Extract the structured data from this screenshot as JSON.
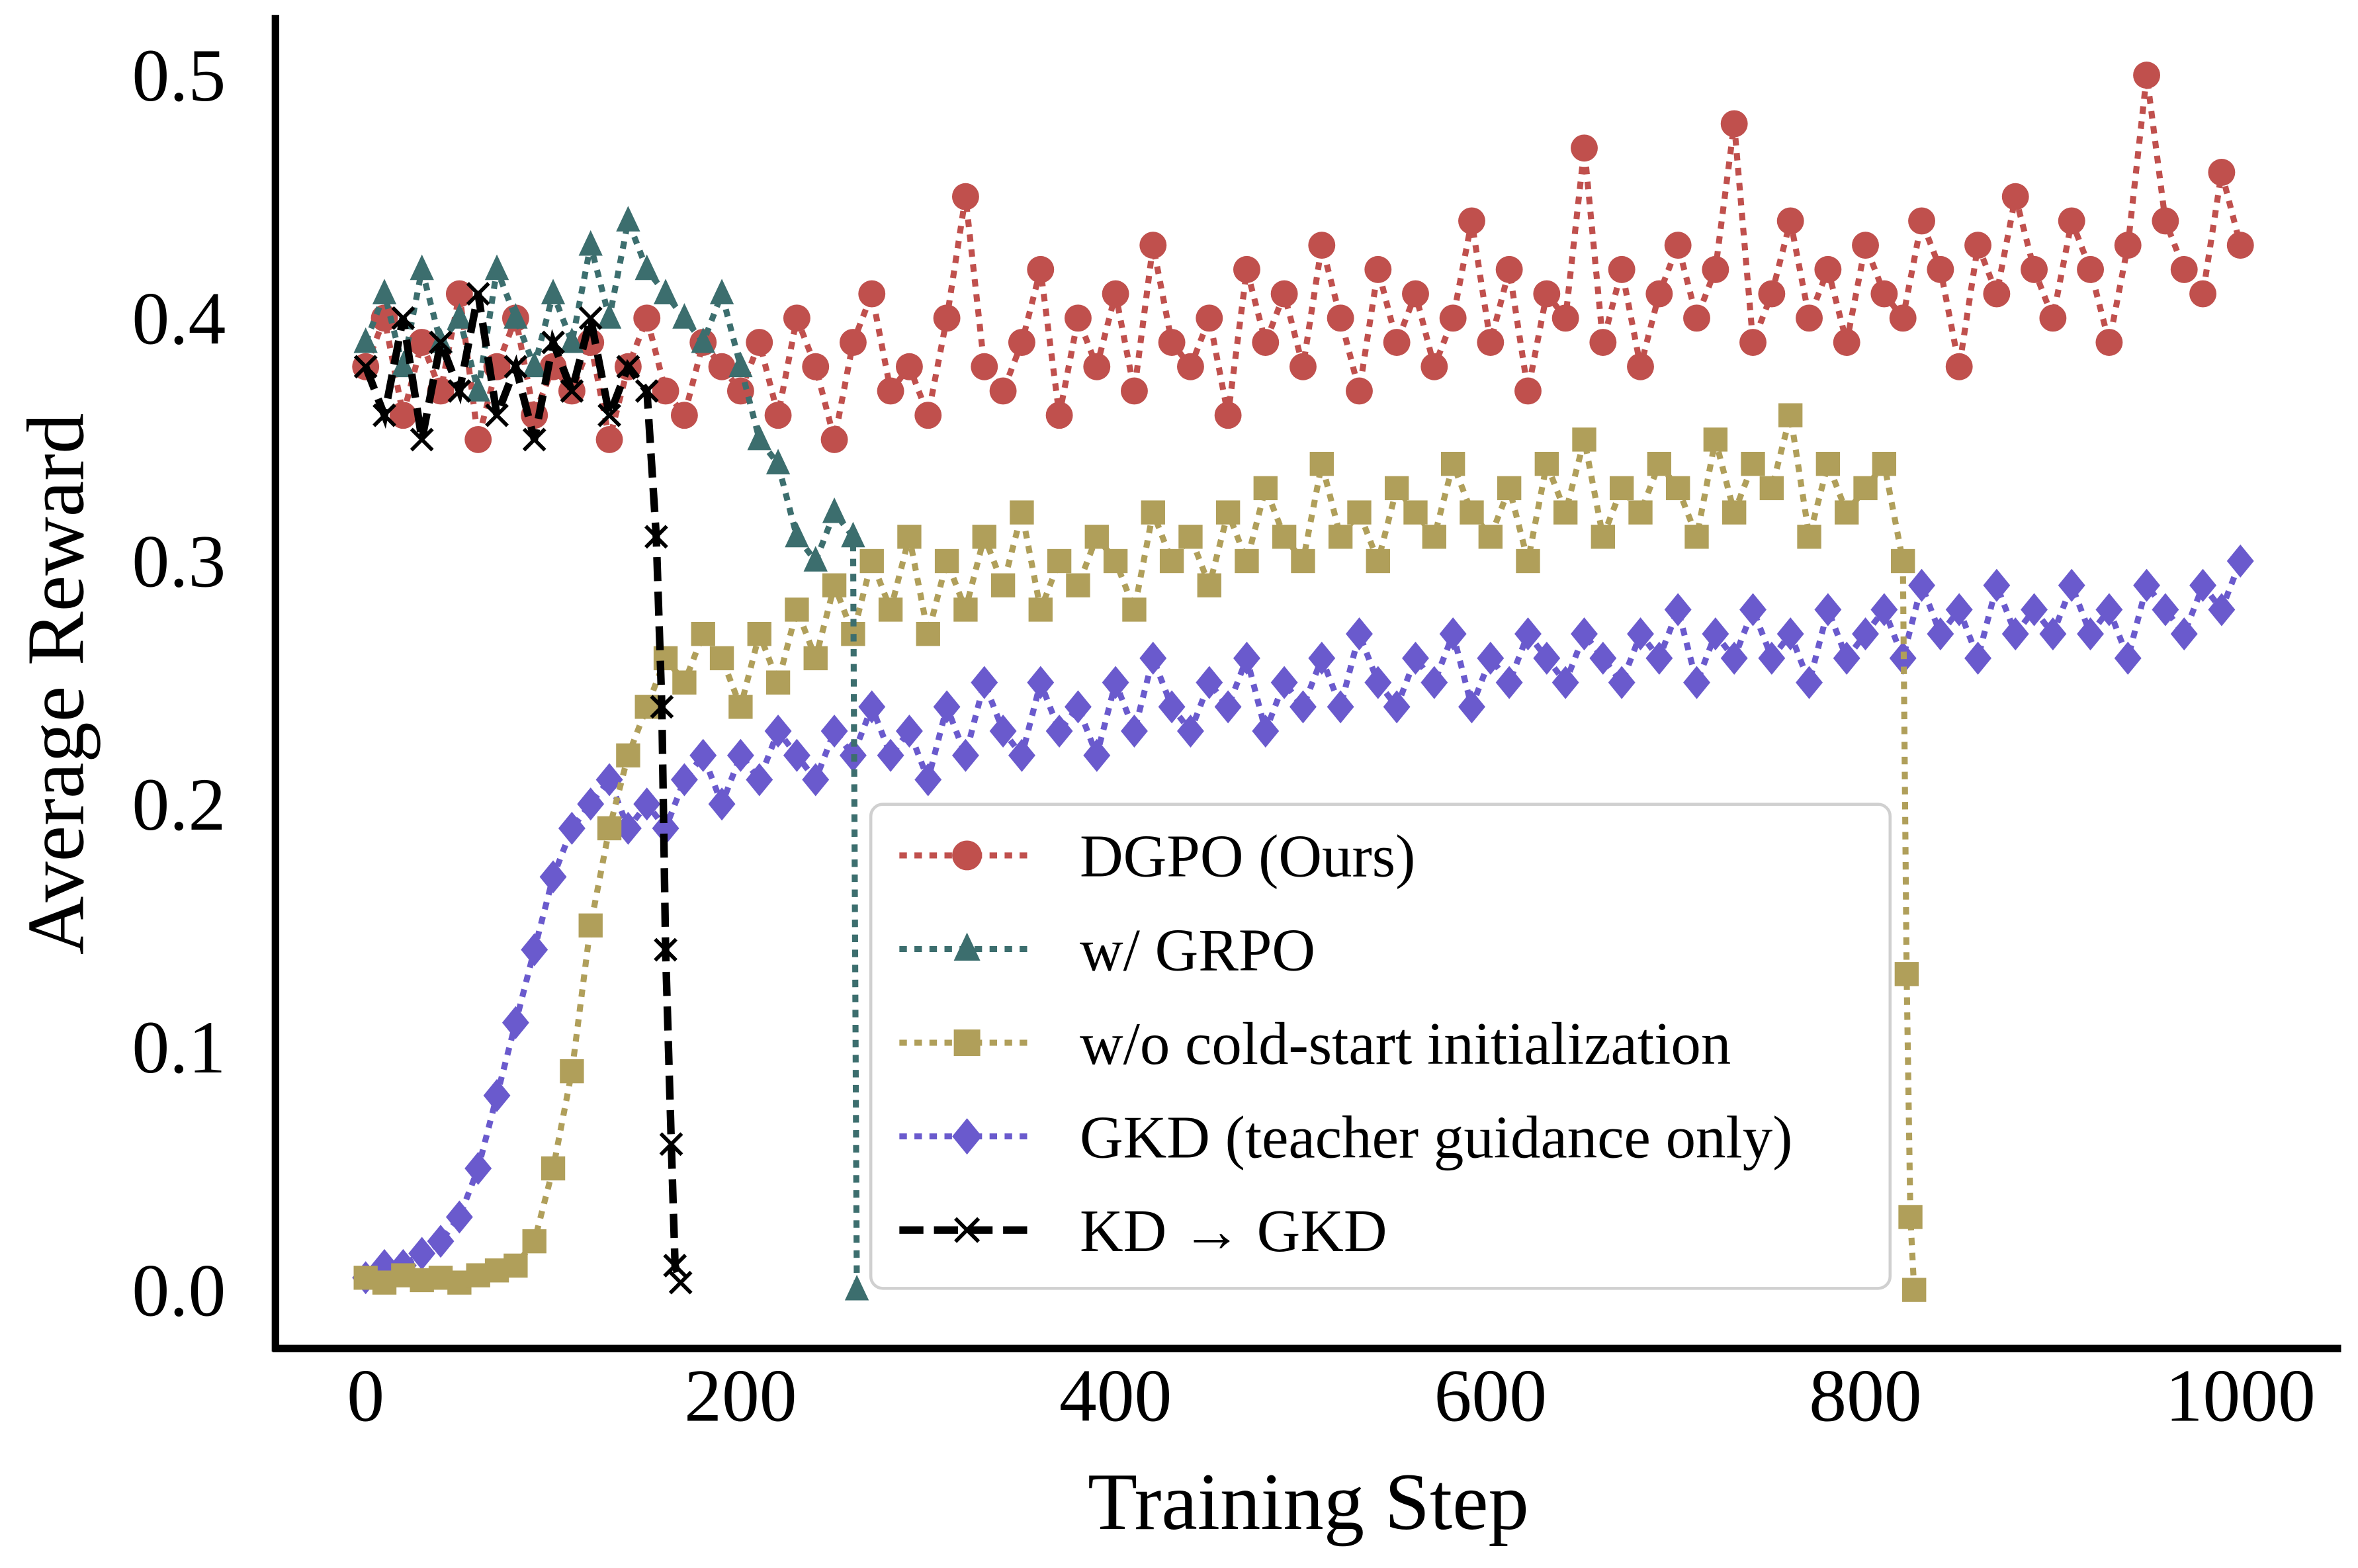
{
  "chart_data": {
    "type": "line",
    "title": "",
    "xlabel": "Training Step",
    "ylabel": "Average Reward",
    "xlim": [
      -50,
      1050
    ],
    "ylim": [
      -0.025,
      0.53
    ],
    "xticks": [
      "0",
      "200",
      "400",
      "600",
      "800",
      "1000"
    ],
    "yticks": [
      "0.0",
      "0.1",
      "0.2",
      "0.3",
      "0.4",
      "0.5"
    ],
    "grid": false,
    "legend_position": "lower-center",
    "series": [
      {
        "name": "DGPO (Ours)",
        "color": "#c0504d",
        "marker": "circle",
        "linestyle": "dotted",
        "x": [
          0,
          10,
          20,
          30,
          40,
          50,
          60,
          70,
          80,
          90,
          100,
          110,
          120,
          130,
          140,
          150,
          160,
          170,
          180,
          190,
          200,
          210,
          220,
          230,
          240,
          250,
          260,
          270,
          280,
          290,
          300,
          310,
          320,
          330,
          340,
          350,
          360,
          370,
          380,
          390,
          400,
          410,
          420,
          430,
          440,
          450,
          460,
          470,
          480,
          490,
          500,
          510,
          520,
          530,
          540,
          550,
          560,
          570,
          580,
          590,
          600,
          610,
          620,
          630,
          640,
          650,
          660,
          670,
          680,
          690,
          700,
          710,
          720,
          730,
          740,
          750,
          760,
          770,
          780,
          790,
          800,
          810,
          820,
          830,
          840,
          850,
          860,
          870,
          880,
          890,
          900,
          910,
          920,
          930,
          940,
          950,
          960,
          970,
          980,
          990,
          1000
        ],
        "y": [
          0.38,
          0.4,
          0.36,
          0.39,
          0.37,
          0.41,
          0.35,
          0.38,
          0.4,
          0.36,
          0.38,
          0.37,
          0.39,
          0.35,
          0.38,
          0.4,
          0.37,
          0.36,
          0.39,
          0.38,
          0.37,
          0.39,
          0.36,
          0.4,
          0.38,
          0.35,
          0.39,
          0.41,
          0.37,
          0.38,
          0.36,
          0.4,
          0.45,
          0.38,
          0.37,
          0.39,
          0.42,
          0.36,
          0.4,
          0.38,
          0.41,
          0.37,
          0.43,
          0.39,
          0.38,
          0.4,
          0.36,
          0.42,
          0.39,
          0.41,
          0.38,
          0.43,
          0.4,
          0.37,
          0.42,
          0.39,
          0.41,
          0.38,
          0.4,
          0.44,
          0.39,
          0.42,
          0.37,
          0.41,
          0.4,
          0.47,
          0.39,
          0.42,
          0.38,
          0.41,
          0.43,
          0.4,
          0.42,
          0.48,
          0.39,
          0.41,
          0.44,
          0.4,
          0.42,
          0.39,
          0.43,
          0.41,
          0.4,
          0.44,
          0.42,
          0.38,
          0.43,
          0.41,
          0.45,
          0.42,
          0.4,
          0.44,
          0.42,
          0.39,
          0.43,
          0.5,
          0.44,
          0.42,
          0.41,
          0.46,
          0.43
        ]
      },
      {
        "name": "w/ GRPO",
        "color": "#3c6e6e",
        "marker": "triangle",
        "linestyle": "dotted",
        "x": [
          0,
          10,
          20,
          30,
          40,
          50,
          60,
          70,
          80,
          90,
          100,
          110,
          120,
          130,
          140,
          150,
          160,
          170,
          180,
          190,
          200,
          210,
          220,
          230,
          240,
          250,
          260,
          262
        ],
        "y": [
          0.39,
          0.41,
          0.38,
          0.42,
          0.39,
          0.4,
          0.37,
          0.42,
          0.4,
          0.38,
          0.41,
          0.39,
          0.43,
          0.4,
          0.44,
          0.42,
          0.41,
          0.4,
          0.39,
          0.41,
          0.38,
          0.35,
          0.34,
          0.31,
          0.3,
          0.32,
          0.31,
          0.0
        ]
      },
      {
        "name": "w/o cold-start initialization",
        "color": "#b09f5a",
        "marker": "square",
        "linestyle": "dotted",
        "x": [
          0,
          10,
          20,
          30,
          40,
          50,
          60,
          70,
          80,
          90,
          100,
          110,
          120,
          130,
          140,
          150,
          160,
          170,
          180,
          190,
          200,
          210,
          220,
          230,
          240,
          250,
          260,
          270,
          280,
          290,
          300,
          310,
          320,
          330,
          340,
          350,
          360,
          370,
          380,
          390,
          400,
          410,
          420,
          430,
          440,
          450,
          460,
          470,
          480,
          490,
          500,
          510,
          520,
          530,
          540,
          550,
          560,
          570,
          580,
          590,
          600,
          610,
          620,
          630,
          640,
          650,
          660,
          670,
          680,
          690,
          700,
          710,
          720,
          730,
          740,
          750,
          760,
          770,
          780,
          790,
          800,
          810,
          820,
          822,
          824,
          826
        ],
        "y": [
          0.005,
          0.003,
          0.006,
          0.004,
          0.005,
          0.003,
          0.006,
          0.008,
          0.01,
          0.02,
          0.05,
          0.09,
          0.15,
          0.19,
          0.22,
          0.24,
          0.26,
          0.25,
          0.27,
          0.26,
          0.24,
          0.27,
          0.25,
          0.28,
          0.26,
          0.29,
          0.27,
          0.3,
          0.28,
          0.31,
          0.27,
          0.3,
          0.28,
          0.31,
          0.29,
          0.32,
          0.28,
          0.3,
          0.29,
          0.31,
          0.3,
          0.28,
          0.32,
          0.3,
          0.31,
          0.29,
          0.32,
          0.3,
          0.33,
          0.31,
          0.3,
          0.34,
          0.31,
          0.32,
          0.3,
          0.33,
          0.32,
          0.31,
          0.34,
          0.32,
          0.31,
          0.33,
          0.3,
          0.34,
          0.32,
          0.35,
          0.31,
          0.33,
          0.32,
          0.34,
          0.33,
          0.31,
          0.35,
          0.32,
          0.34,
          0.33,
          0.36,
          0.31,
          0.34,
          0.32,
          0.33,
          0.34,
          0.3,
          0.13,
          0.03,
          0.0
        ]
      },
      {
        "name": "GKD (teacher guidance only)",
        "color": "#6a5acd",
        "marker": "diamond",
        "linestyle": "dotted",
        "x": [
          0,
          10,
          20,
          30,
          40,
          50,
          60,
          70,
          80,
          90,
          100,
          110,
          120,
          130,
          140,
          150,
          160,
          170,
          180,
          190,
          200,
          210,
          220,
          230,
          240,
          250,
          260,
          270,
          280,
          290,
          300,
          310,
          320,
          330,
          340,
          350,
          360,
          370,
          380,
          390,
          400,
          410,
          420,
          430,
          440,
          450,
          460,
          470,
          480,
          490,
          500,
          510,
          520,
          530,
          540,
          550,
          560,
          570,
          580,
          590,
          600,
          610,
          620,
          630,
          640,
          650,
          660,
          670,
          680,
          690,
          700,
          710,
          720,
          730,
          740,
          750,
          760,
          770,
          780,
          790,
          800,
          810,
          820,
          830,
          840,
          850,
          860,
          870,
          880,
          890,
          900,
          910,
          920,
          930,
          940,
          950,
          960,
          970,
          980,
          990,
          1000
        ],
        "y": [
          0.005,
          0.01,
          0.01,
          0.015,
          0.02,
          0.03,
          0.05,
          0.08,
          0.11,
          0.14,
          0.17,
          0.19,
          0.2,
          0.21,
          0.19,
          0.2,
          0.19,
          0.21,
          0.22,
          0.2,
          0.22,
          0.21,
          0.23,
          0.22,
          0.21,
          0.23,
          0.22,
          0.24,
          0.22,
          0.23,
          0.21,
          0.24,
          0.22,
          0.25,
          0.23,
          0.22,
          0.25,
          0.23,
          0.24,
          0.22,
          0.25,
          0.23,
          0.26,
          0.24,
          0.23,
          0.25,
          0.24,
          0.26,
          0.23,
          0.25,
          0.24,
          0.26,
          0.24,
          0.27,
          0.25,
          0.24,
          0.26,
          0.25,
          0.27,
          0.24,
          0.26,
          0.25,
          0.27,
          0.26,
          0.25,
          0.27,
          0.26,
          0.25,
          0.27,
          0.26,
          0.28,
          0.25,
          0.27,
          0.26,
          0.28,
          0.26,
          0.27,
          0.25,
          0.28,
          0.26,
          0.27,
          0.28,
          0.26,
          0.29,
          0.27,
          0.28,
          0.26,
          0.29,
          0.27,
          0.28,
          0.27,
          0.29,
          0.27,
          0.28,
          0.26,
          0.29,
          0.28,
          0.27,
          0.29,
          0.28,
          0.3
        ]
      },
      {
        "name": "KD → GKD",
        "color": "#000000",
        "marker": "x",
        "linestyle": "dashed",
        "x": [
          0,
          10,
          20,
          30,
          40,
          50,
          60,
          70,
          80,
          90,
          100,
          110,
          120,
          130,
          140,
          150,
          155,
          158,
          160,
          163,
          165,
          168
        ],
        "y": [
          0.38,
          0.36,
          0.4,
          0.35,
          0.39,
          0.37,
          0.41,
          0.36,
          0.38,
          0.35,
          0.39,
          0.37,
          0.4,
          0.36,
          0.38,
          0.37,
          0.31,
          0.24,
          0.14,
          0.06,
          0.01,
          0.003
        ]
      }
    ]
  }
}
